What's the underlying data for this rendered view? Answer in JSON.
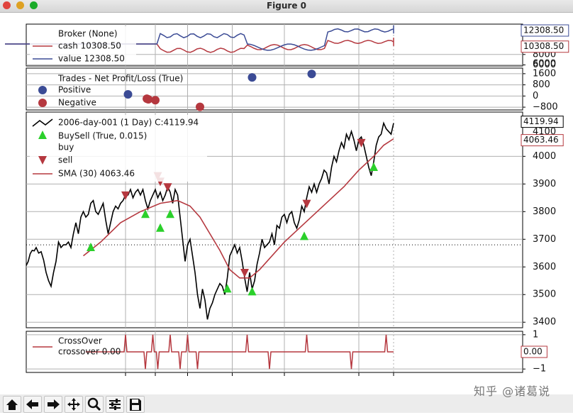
{
  "window": {
    "title": "Figure 0",
    "buttons": [
      {
        "name": "close-button",
        "color": "#e0443e"
      },
      {
        "name": "minimize-button",
        "color": "#dea123"
      },
      {
        "name": "maximize-button",
        "color": "#1aab29"
      }
    ]
  },
  "toolbar": {
    "buttons": [
      {
        "name": "home-button",
        "icon": "home-icon"
      },
      {
        "name": "back-button",
        "icon": "arrow-left-icon"
      },
      {
        "name": "forward-button",
        "icon": "arrow-right-icon"
      },
      {
        "name": "pan-button",
        "icon": "move-icon"
      },
      {
        "name": "zoom-button",
        "icon": "magnifier-icon"
      },
      {
        "name": "configure-subplots-button",
        "icon": "sliders-icon"
      },
      {
        "name": "save-button",
        "icon": "floppy-icon"
      }
    ]
  },
  "watermark": "知乎 @诸葛说",
  "colors": {
    "price": "#000000",
    "sma": "#b5383f",
    "value": "#3b4b95",
    "positive": "#3b4b95",
    "negative": "#b5383f",
    "buy": "#2bd02b",
    "sell": "#b5383f"
  },
  "chart_data": [
    {
      "type": "line",
      "panel": "broker",
      "series": [
        {
          "name": "cash",
          "legend": "cash 10308.50",
          "last": 10308.5
        },
        {
          "name": "value",
          "legend": "value 12308.50",
          "last": 12308.5
        }
      ],
      "legend_title": "Broker (None)",
      "yticks": [
        6000,
        8000
      ],
      "yticks_clipped": [
        6000
      ],
      "ylim": [
        5800,
        13800
      ],
      "last_value_labels": [
        "12308.50",
        "10308.50"
      ],
      "legend_position": "top-left"
    },
    {
      "type": "scatter",
      "panel": "trades",
      "legend_title": "Trades - Net Profit/Loss (True)",
      "series": [
        {
          "name": "Positive",
          "points": [
            [
              0.205,
              120
            ],
            [
              0.455,
              1330
            ],
            [
              0.575,
              1580
            ]
          ]
        },
        {
          "name": "Negative",
          "points": [
            [
              0.243,
              -190
            ],
            [
              0.246,
              -240
            ],
            [
              0.26,
              -300
            ],
            [
              0.35,
              -780
            ]
          ]
        }
      ],
      "yticks": [
        1600,
        800,
        0,
        -800
      ],
      "ylim": [
        -1000,
        2000
      ],
      "legend_position": "top-left"
    },
    {
      "type": "line",
      "panel": "price",
      "series": [
        {
          "name": "2006-day-001 (1 Day) C:4119.94",
          "legend": "2006-day-001 (1 Day) C:4119.94",
          "points": [
            [
              0.0,
              3605
            ],
            [
              0.004,
              3620
            ],
            [
              0.008,
              3648
            ],
            [
              0.012,
              3660
            ],
            [
              0.016,
              3658
            ],
            [
              0.02,
              3670
            ],
            [
              0.025,
              3650
            ],
            [
              0.03,
              3655
            ],
            [
              0.035,
              3625
            ],
            [
              0.04,
              3580
            ],
            [
              0.045,
              3550
            ],
            [
              0.05,
              3530
            ],
            [
              0.055,
              3580
            ],
            [
              0.06,
              3620
            ],
            [
              0.065,
              3690
            ],
            [
              0.07,
              3670
            ],
            [
              0.075,
              3680
            ],
            [
              0.08,
              3680
            ],
            [
              0.085,
              3690
            ],
            [
              0.09,
              3670
            ],
            [
              0.095,
              3720
            ],
            [
              0.1,
              3760
            ],
            [
              0.105,
              3720
            ],
            [
              0.11,
              3780
            ],
            [
              0.115,
              3800
            ],
            [
              0.12,
              3780
            ],
            [
              0.125,
              3790
            ],
            [
              0.13,
              3830
            ],
            [
              0.135,
              3840
            ],
            [
              0.14,
              3800
            ],
            [
              0.145,
              3790
            ],
            [
              0.15,
              3810
            ],
            [
              0.155,
              3830
            ],
            [
              0.16,
              3770
            ],
            [
              0.165,
              3720
            ],
            [
              0.17,
              3760
            ],
            [
              0.175,
              3800
            ],
            [
              0.18,
              3820
            ],
            [
              0.185,
              3810
            ],
            [
              0.19,
              3830
            ],
            [
              0.195,
              3840
            ],
            [
              0.2,
              3860
            ],
            [
              0.205,
              3860
            ],
            [
              0.21,
              3880
            ],
            [
              0.215,
              3850
            ],
            [
              0.22,
              3870
            ],
            [
              0.225,
              3880
            ],
            [
              0.23,
              3860
            ],
            [
              0.235,
              3880
            ],
            [
              0.24,
              3840
            ],
            [
              0.245,
              3810
            ],
            [
              0.25,
              3840
            ],
            [
              0.255,
              3860
            ],
            [
              0.26,
              3880
            ],
            [
              0.265,
              3850
            ],
            [
              0.27,
              3870
            ],
            [
              0.275,
              3840
            ],
            [
              0.28,
              3860
            ],
            [
              0.285,
              3890
            ],
            [
              0.29,
              3870
            ],
            [
              0.295,
              3830
            ],
            [
              0.3,
              3880
            ],
            [
              0.305,
              3860
            ],
            [
              0.31,
              3780
            ],
            [
              0.315,
              3700
            ],
            [
              0.32,
              3620
            ],
            [
              0.325,
              3680
            ],
            [
              0.33,
              3700
            ],
            [
              0.335,
              3640
            ],
            [
              0.34,
              3580
            ],
            [
              0.345,
              3500
            ],
            [
              0.35,
              3450
            ],
            [
              0.355,
              3520
            ],
            [
              0.36,
              3480
            ],
            [
              0.365,
              3410
            ],
            [
              0.37,
              3450
            ],
            [
              0.375,
              3470
            ],
            [
              0.38,
              3500
            ],
            [
              0.385,
              3520
            ],
            [
              0.39,
              3540
            ],
            [
              0.395,
              3530
            ],
            [
              0.4,
              3500
            ],
            [
              0.405,
              3560
            ],
            [
              0.41,
              3640
            ],
            [
              0.415,
              3660
            ],
            [
              0.42,
              3680
            ],
            [
              0.425,
              3650
            ],
            [
              0.43,
              3670
            ],
            [
              0.435,
              3620
            ],
            [
              0.44,
              3560
            ],
            [
              0.445,
              3510
            ],
            [
              0.45,
              3580
            ],
            [
              0.455,
              3520
            ],
            [
              0.46,
              3550
            ],
            [
              0.465,
              3610
            ],
            [
              0.47,
              3650
            ],
            [
              0.475,
              3700
            ],
            [
              0.48,
              3670
            ],
            [
              0.485,
              3680
            ],
            [
              0.49,
              3690
            ],
            [
              0.495,
              3720
            ],
            [
              0.5,
              3680
            ],
            [
              0.505,
              3750
            ],
            [
              0.51,
              3740
            ],
            [
              0.515,
              3780
            ],
            [
              0.52,
              3790
            ],
            [
              0.525,
              3760
            ],
            [
              0.53,
              3790
            ],
            [
              0.535,
              3800
            ],
            [
              0.54,
              3760
            ],
            [
              0.545,
              3740
            ],
            [
              0.55,
              3770
            ],
            [
              0.555,
              3820
            ],
            [
              0.56,
              3800
            ],
            [
              0.565,
              3850
            ],
            [
              0.57,
              3890
            ],
            [
              0.575,
              3870
            ],
            [
              0.58,
              3900
            ],
            [
              0.585,
              3870
            ],
            [
              0.59,
              3900
            ],
            [
              0.595,
              3920
            ],
            [
              0.6,
              3950
            ],
            [
              0.605,
              3940
            ],
            [
              0.61,
              3900
            ],
            [
              0.615,
              3960
            ],
            [
              0.62,
              4000
            ],
            [
              0.625,
              3980
            ],
            [
              0.63,
              4020
            ],
            [
              0.635,
              4050
            ],
            [
              0.64,
              4030
            ],
            [
              0.645,
              4080
            ],
            [
              0.65,
              4060
            ],
            [
              0.655,
              4090
            ],
            [
              0.66,
              4060
            ],
            [
              0.665,
              4020
            ],
            [
              0.67,
              4060
            ],
            [
              0.675,
              4070
            ],
            [
              0.68,
              4040
            ],
            [
              0.685,
              4000
            ],
            [
              0.69,
              3960
            ],
            [
              0.695,
              3930
            ],
            [
              0.7,
              3980
            ],
            [
              0.705,
              4040
            ],
            [
              0.71,
              4070
            ],
            [
              0.715,
              4080
            ],
            [
              0.72,
              4120
            ],
            [
              0.725,
              4100
            ],
            [
              0.73,
              4090
            ],
            [
              0.735,
              4080
            ],
            [
              0.74,
              4119.94
            ]
          ]
        },
        {
          "name": "SMA (30) 4063.46",
          "legend": "SMA (30) 4063.46",
          "points": [
            [
              0.115,
              3640
            ],
            [
              0.15,
              3690
            ],
            [
              0.19,
              3760
            ],
            [
              0.23,
              3800
            ],
            [
              0.27,
              3830
            ],
            [
              0.305,
              3840
            ],
            [
              0.33,
              3820
            ],
            [
              0.35,
              3780
            ],
            [
              0.37,
              3720
            ],
            [
              0.39,
              3660
            ],
            [
              0.41,
              3590
            ],
            [
              0.43,
              3560
            ],
            [
              0.45,
              3560
            ],
            [
              0.47,
              3590
            ],
            [
              0.49,
              3630
            ],
            [
              0.52,
              3690
            ],
            [
              0.55,
              3740
            ],
            [
              0.58,
              3790
            ],
            [
              0.61,
              3840
            ],
            [
              0.64,
              3890
            ],
            [
              0.67,
              3950
            ],
            [
              0.7,
              4000
            ],
            [
              0.72,
              4040
            ],
            [
              0.74,
              4063.46
            ]
          ]
        }
      ],
      "markers": {
        "legend_title": "BuySell (True, 0.015)",
        "buy_label": "buy",
        "sell_label": "sell",
        "buy": [
          [
            0.13,
            3670
          ],
          [
            0.24,
            3790
          ],
          [
            0.27,
            3740
          ],
          [
            0.29,
            3790
          ],
          [
            0.405,
            3520
          ],
          [
            0.455,
            3510
          ],
          [
            0.56,
            3710
          ],
          [
            0.7,
            3960
          ]
        ],
        "sell": [
          [
            0.2,
            3860
          ],
          [
            0.265,
            3930
          ],
          [
            0.27,
            3910
          ],
          [
            0.285,
            3890
          ],
          [
            0.44,
            3580
          ],
          [
            0.565,
            3830
          ],
          [
            0.675,
            4050
          ]
        ]
      },
      "yticks": [
        3400,
        3500,
        3600,
        3700,
        3800,
        3900,
        4000
      ],
      "yticks_clipped": [
        4100
      ],
      "ylim": [
        3380,
        4160
      ],
      "hline": 3680,
      "vline_x": 0.74,
      "last_value_labels": [
        "4119.94",
        "4063.46"
      ],
      "legend_position": "top-left"
    },
    {
      "type": "line",
      "panel": "crossover",
      "legend_title": "CrossOver",
      "series": [
        {
          "name": "crossover",
          "legend": "crossover 0.00",
          "spikes": [
            [
              0.2,
              1
            ],
            [
              0.24,
              -1
            ],
            [
              0.255,
              1
            ],
            [
              0.265,
              -1
            ],
            [
              0.29,
              1
            ],
            [
              0.31,
              -1
            ],
            [
              0.325,
              1
            ],
            [
              0.345,
              -1
            ],
            [
              0.445,
              1
            ],
            [
              0.49,
              -1
            ],
            [
              0.565,
              1
            ],
            [
              0.655,
              -1
            ],
            [
              0.725,
              1
            ]
          ]
        }
      ],
      "yticks": [
        1,
        -1
      ],
      "ylim": [
        -1.2,
        1.2
      ],
      "last_value_labels": [
        "0.00"
      ],
      "legend_position": "top-left"
    }
  ]
}
